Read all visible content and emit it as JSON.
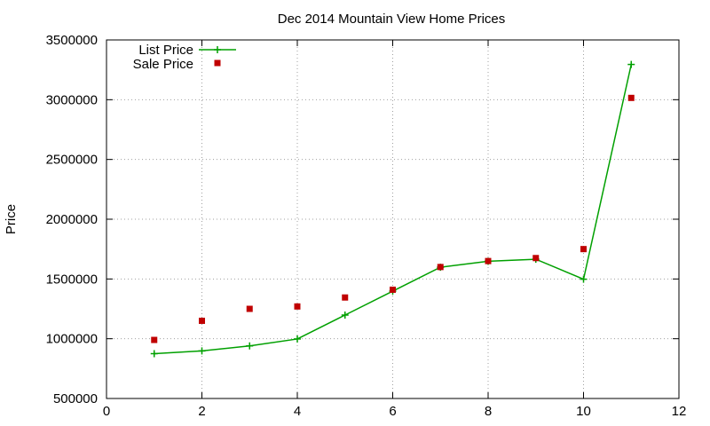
{
  "chart_data": {
    "type": "line",
    "title": "Dec 2014 Mountain View Home Prices",
    "xlabel": "",
    "ylabel": "Price",
    "xlim": [
      0,
      12
    ],
    "ylim": [
      500000,
      3500000
    ],
    "x_ticks": [
      0,
      2,
      4,
      6,
      8,
      10,
      12
    ],
    "y_ticks": [
      500000,
      1000000,
      1500000,
      2000000,
      2500000,
      3000000,
      3500000
    ],
    "grid": true,
    "legend_position": "top-left",
    "series": [
      {
        "name": "List Price",
        "style": "line-plus",
        "color": "#00a000",
        "x": [
          1,
          2,
          3,
          4,
          5,
          6,
          7,
          8,
          9,
          10,
          11
        ],
        "y": [
          875000,
          898000,
          940000,
          998000,
          1198000,
          1398000,
          1598000,
          1648000,
          1665000,
          1498000,
          3295000
        ]
      },
      {
        "name": "Sale Price",
        "style": "square-points",
        "color": "#c00000",
        "x": [
          1,
          2,
          3,
          4,
          5,
          6,
          7,
          8,
          9,
          10,
          11
        ],
        "y": [
          990000,
          1150000,
          1250000,
          1270000,
          1345000,
          1410000,
          1600000,
          1650000,
          1675000,
          1750000,
          3015000
        ]
      }
    ]
  }
}
